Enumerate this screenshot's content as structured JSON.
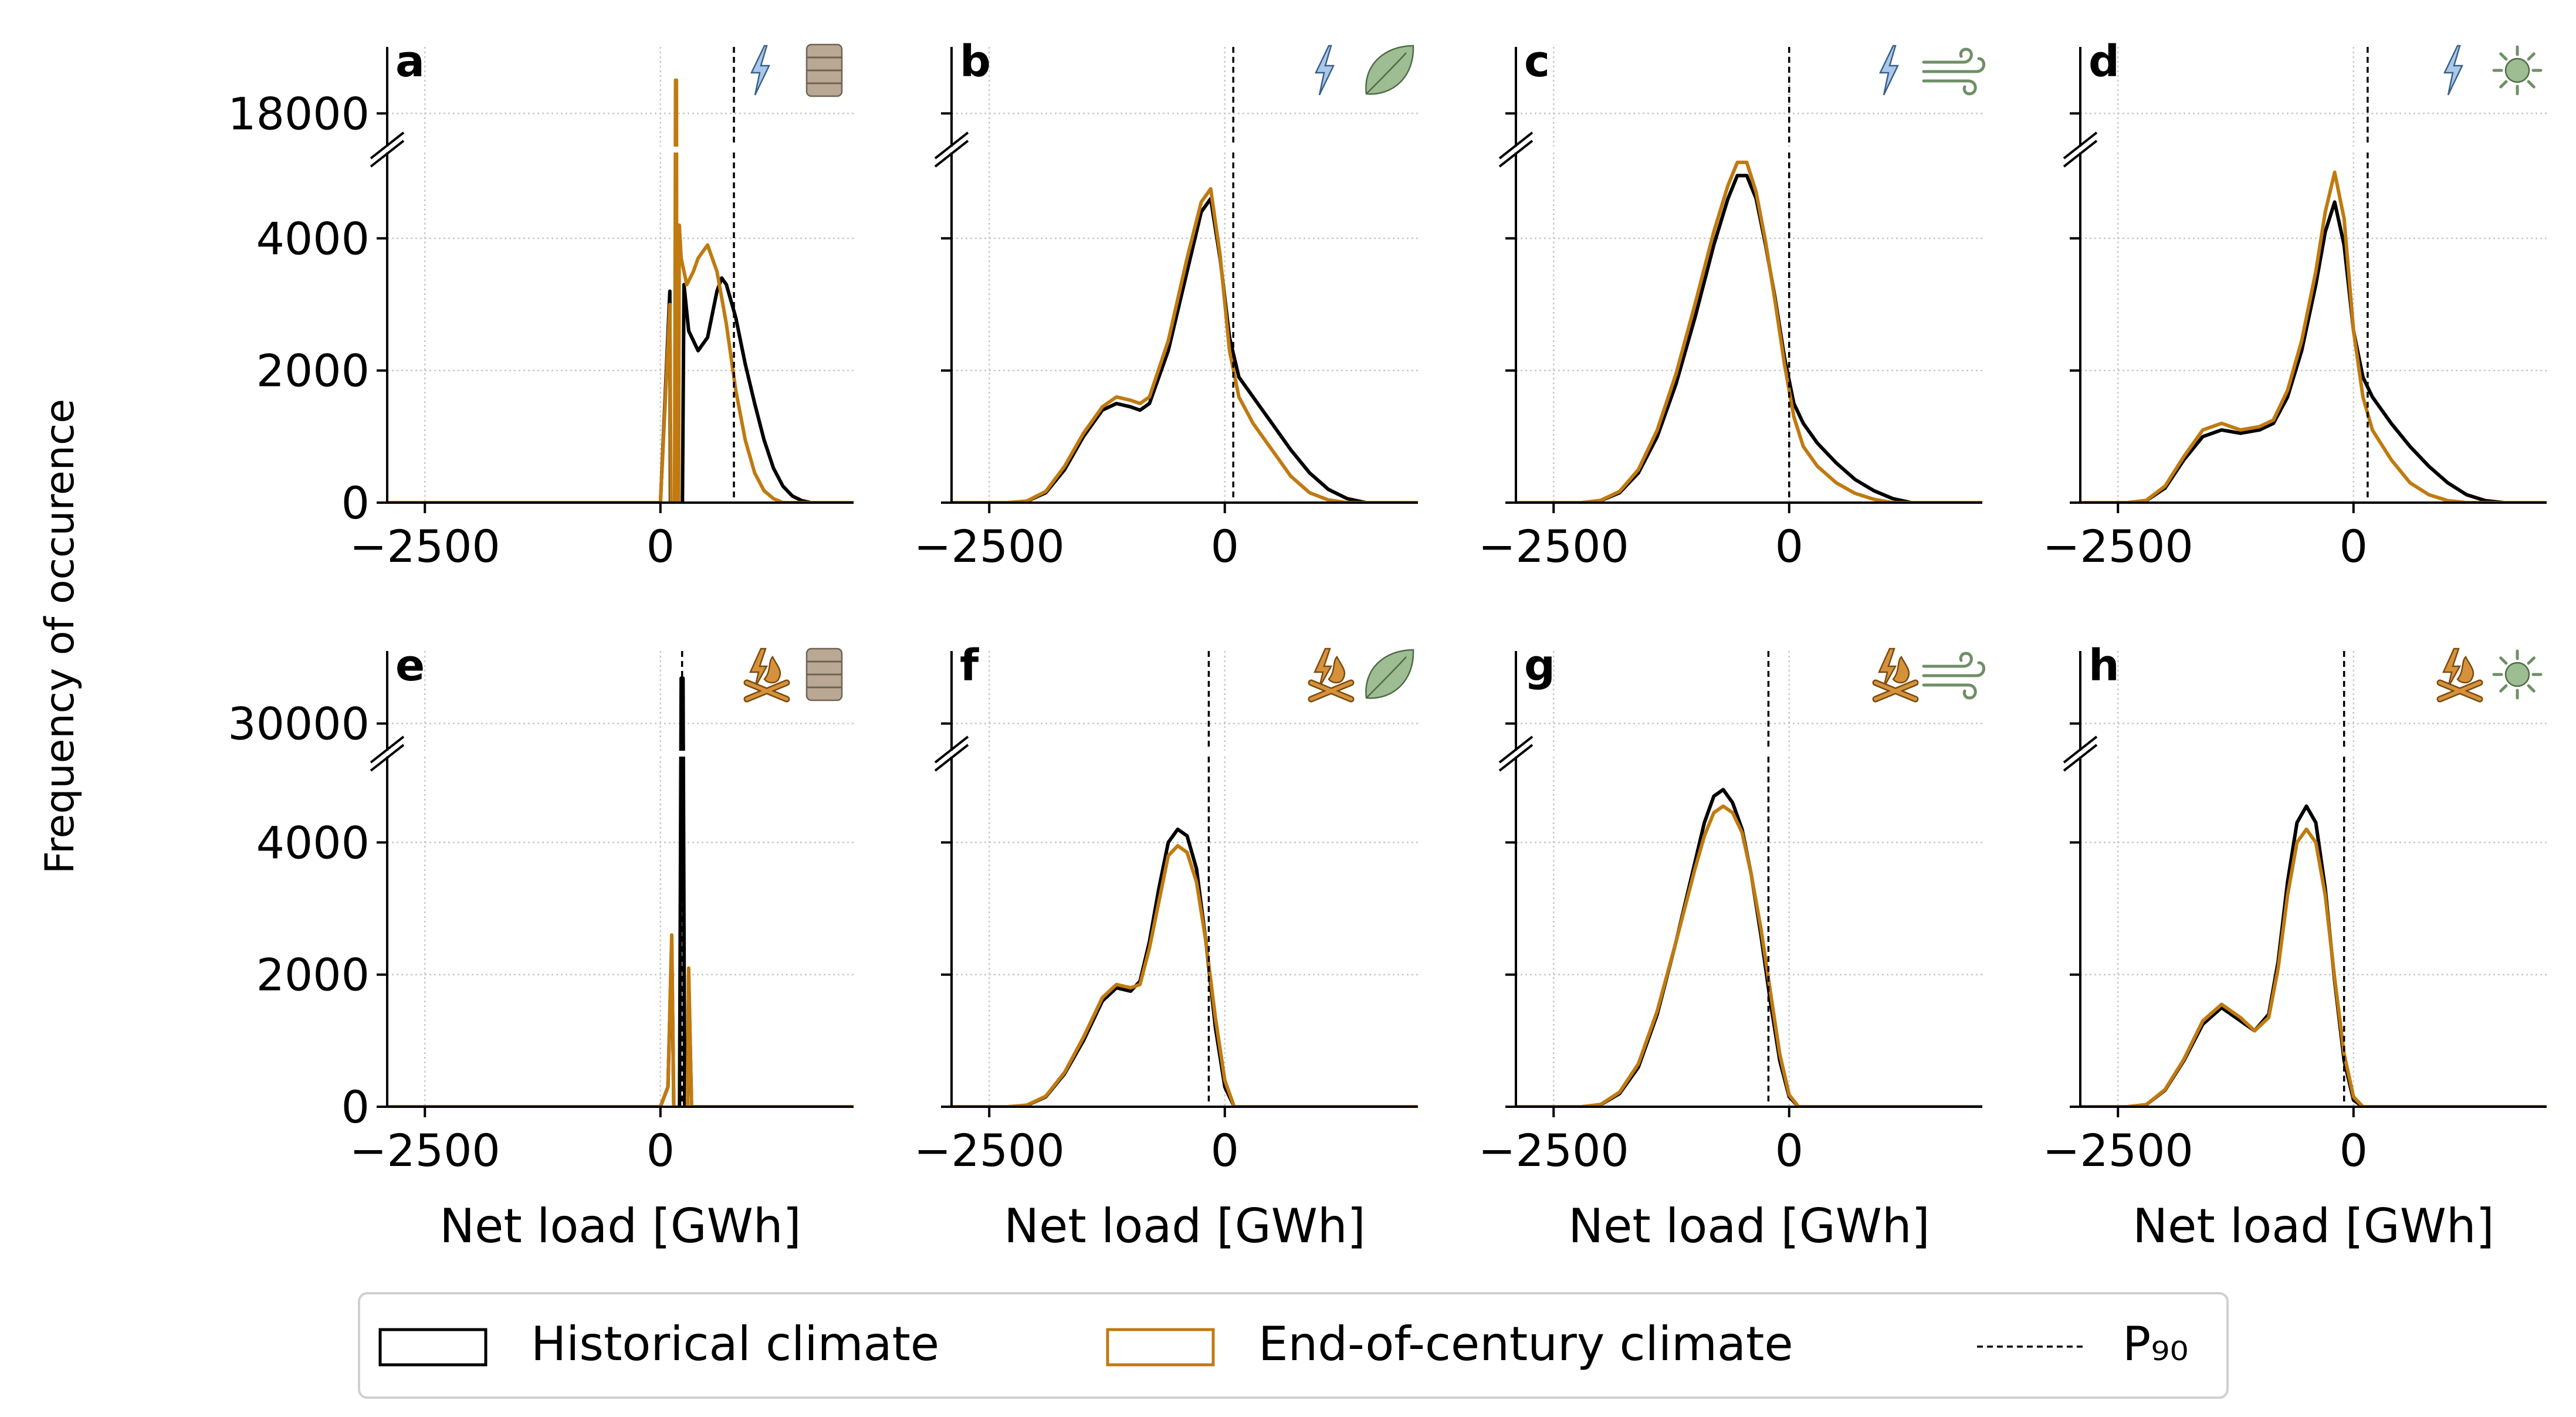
{
  "figure": {
    "ylabel": "Frequency of occurence",
    "xlabel": "Net load [GWh]",
    "legend": {
      "items": [
        {
          "label": "Historical climate",
          "color": "#000000",
          "kind": "box"
        },
        {
          "label": "End-of-century climate",
          "color": "#c07a10",
          "kind": "box"
        },
        {
          "label": "P₉₀",
          "color": "#000000",
          "kind": "dashed-line"
        }
      ]
    },
    "colors": {
      "historical": "#000000",
      "end_of_century": "#c07a10",
      "grid": "#c8c8c8",
      "icon_blue": "#a9c8ea",
      "icon_orange": "#d6923a",
      "icon_green": "#9ebd93",
      "icon_tan": "#b9a994"
    }
  },
  "chart_data": [
    {
      "panel": "a",
      "type": "area",
      "icons": [
        "lightning-icon",
        "oil-barrel-icon"
      ],
      "x_ticks": [
        -2500,
        0
      ],
      "xlim": [
        -2900,
        2050
      ],
      "y_ticks_lower": [
        0,
        2000,
        4000
      ],
      "y_tick_upper": 18000,
      "ylim_lower": [
        0,
        5300
      ],
      "ylim_upper": [
        17500,
        19000
      ],
      "p90": 780,
      "grid": true,
      "series": [
        {
          "name": "Historical climate",
          "x": [
            -2900,
            0,
            100,
            120,
            150,
            200,
            250,
            300,
            400,
            500,
            600,
            650,
            700,
            800,
            900,
            1000,
            1100,
            1200,
            1300,
            1400,
            1500,
            1600,
            2050
          ],
          "y": [
            0,
            0,
            3200,
            5400,
            5400,
            5400,
            3300,
            2600,
            2300,
            2500,
            3200,
            3400,
            3300,
            2800,
            2100,
            1500,
            950,
            520,
            250,
            100,
            30,
            0,
            0
          ]
        },
        {
          "name": "End-of-century climate",
          "x": [
            -2900,
            0,
            100,
            140,
            160,
            170,
            180,
            200,
            220,
            280,
            350,
            400,
            450,
            500,
            550,
            600,
            650,
            700,
            750,
            800,
            900,
            1000,
            1100,
            1200,
            1300,
            2050
          ],
          "y": [
            0,
            0,
            3000,
            5400,
            18500,
            18500,
            5400,
            4200,
            3700,
            3300,
            3500,
            3700,
            3800,
            3900,
            3700,
            3500,
            3100,
            2700,
            2200,
            1700,
            950,
            450,
            180,
            60,
            0,
            0
          ]
        }
      ]
    },
    {
      "panel": "b",
      "type": "area",
      "icons": [
        "lightning-icon",
        "leaf-icon"
      ],
      "x_ticks": [
        -2500,
        0
      ],
      "xlim": [
        -2900,
        2050
      ],
      "y_ticks_lower": [
        0,
        2000,
        4000
      ],
      "y_tick_upper": 18000,
      "ylim_lower": [
        0,
        5300
      ],
      "ylim_upper": [
        17500,
        19000
      ],
      "p90": 90,
      "grid": true,
      "series": [
        {
          "name": "Historical climate",
          "x": [
            -2900,
            -2300,
            -2100,
            -1900,
            -1700,
            -1500,
            -1300,
            -1150,
            -1000,
            -900,
            -800,
            -600,
            -400,
            -250,
            -150,
            -50,
            50,
            150,
            300,
            500,
            700,
            900,
            1100,
            1300,
            1500,
            2050
          ],
          "y": [
            0,
            0,
            20,
            150,
            500,
            1000,
            1400,
            1500,
            1450,
            1400,
            1500,
            2300,
            3500,
            4400,
            4600,
            3700,
            2500,
            1900,
            1600,
            1200,
            800,
            450,
            200,
            60,
            0,
            0
          ]
        },
        {
          "name": "End-of-century climate",
          "x": [
            -2900,
            -2300,
            -2100,
            -1900,
            -1700,
            -1500,
            -1300,
            -1150,
            -1000,
            -900,
            -800,
            -600,
            -400,
            -250,
            -150,
            -50,
            50,
            150,
            300,
            500,
            700,
            900,
            1100,
            1300,
            2050
          ],
          "y": [
            0,
            0,
            25,
            170,
            550,
            1050,
            1450,
            1600,
            1550,
            1500,
            1600,
            2450,
            3700,
            4550,
            4750,
            3750,
            2300,
            1600,
            1200,
            800,
            400,
            150,
            40,
            0,
            0
          ]
        }
      ]
    },
    {
      "panel": "c",
      "type": "area",
      "icons": [
        "lightning-icon",
        "wind-icon"
      ],
      "x_ticks": [
        -2500,
        0
      ],
      "xlim": [
        -2900,
        2050
      ],
      "y_ticks_lower": [
        0,
        2000,
        4000
      ],
      "y_tick_upper": 18000,
      "ylim_lower": [
        0,
        5300
      ],
      "ylim_upper": [
        17500,
        19000
      ],
      "p90": 0,
      "grid": true,
      "series": [
        {
          "name": "Historical climate",
          "x": [
            -2900,
            -2200,
            -2000,
            -1800,
            -1600,
            -1400,
            -1200,
            -1000,
            -800,
            -650,
            -550,
            -450,
            -350,
            -250,
            -150,
            -50,
            50,
            150,
            300,
            500,
            700,
            900,
            1100,
            1300,
            2050
          ],
          "y": [
            0,
            0,
            30,
            150,
            450,
            1000,
            1800,
            2800,
            3900,
            4600,
            4950,
            4950,
            4600,
            3900,
            3100,
            2200,
            1500,
            1200,
            900,
            600,
            350,
            180,
            60,
            0,
            0
          ]
        },
        {
          "name": "End-of-century climate",
          "x": [
            -2900,
            -2200,
            -2000,
            -1800,
            -1600,
            -1400,
            -1200,
            -1000,
            -800,
            -650,
            -550,
            -450,
            -350,
            -250,
            -150,
            -50,
            50,
            150,
            300,
            500,
            700,
            900,
            1100,
            2050
          ],
          "y": [
            0,
            0,
            35,
            170,
            500,
            1100,
            1950,
            3000,
            4100,
            4800,
            5150,
            5150,
            4700,
            3950,
            3050,
            2100,
            1300,
            850,
            550,
            300,
            140,
            50,
            0,
            0
          ]
        }
      ]
    },
    {
      "panel": "d",
      "type": "area",
      "icons": [
        "lightning-icon",
        "sun-icon"
      ],
      "x_ticks": [
        -2500,
        0
      ],
      "xlim": [
        -2900,
        2050
      ],
      "y_ticks_lower": [
        0,
        2000,
        4000
      ],
      "y_tick_upper": 18000,
      "ylim_lower": [
        0,
        5300
      ],
      "ylim_upper": [
        17500,
        19000
      ],
      "p90": 150,
      "grid": true,
      "series": [
        {
          "name": "Historical climate",
          "x": [
            -2900,
            -2400,
            -2200,
            -2000,
            -1800,
            -1600,
            -1400,
            -1200,
            -1000,
            -850,
            -700,
            -550,
            -400,
            -300,
            -200,
            -100,
            0,
            100,
            200,
            400,
            600,
            800,
            1000,
            1200,
            1400,
            1600,
            2050
          ],
          "y": [
            0,
            0,
            30,
            220,
            650,
            1000,
            1100,
            1050,
            1100,
            1200,
            1600,
            2300,
            3300,
            4100,
            4550,
            3900,
            2600,
            1900,
            1600,
            1200,
            850,
            550,
            300,
            120,
            30,
            0,
            0
          ]
        },
        {
          "name": "End-of-century climate",
          "x": [
            -2900,
            -2400,
            -2200,
            -2000,
            -1800,
            -1600,
            -1400,
            -1200,
            -1000,
            -850,
            -700,
            -550,
            -400,
            -300,
            -200,
            -100,
            0,
            100,
            200,
            400,
            600,
            800,
            1000,
            1200,
            2050
          ],
          "y": [
            0,
            0,
            35,
            250,
            700,
            1100,
            1200,
            1100,
            1150,
            1250,
            1700,
            2450,
            3500,
            4400,
            5000,
            4300,
            2600,
            1600,
            1100,
            650,
            300,
            120,
            30,
            0,
            0
          ]
        }
      ]
    },
    {
      "panel": "e",
      "type": "area",
      "icons": [
        "fire-icon",
        "oil-barrel-icon"
      ],
      "x_ticks": [
        -2500,
        0
      ],
      "xlim": [
        -2900,
        2050
      ],
      "y_ticks_lower": [
        0,
        2000,
        4000
      ],
      "y_tick_upper": 30000,
      "ylim_lower": [
        0,
        5300
      ],
      "ylim_upper": [
        28500,
        34000
      ],
      "p90": 230,
      "grid": true,
      "series": [
        {
          "name": "Historical climate",
          "x": [
            -2900,
            0,
            80,
            120,
            150,
            180,
            200,
            220,
            240,
            260,
            280,
            300,
            330,
            2050
          ],
          "y": [
            0,
            0,
            300,
            2500,
            5400,
            5400,
            5400,
            32500,
            32500,
            5400,
            5400,
            2000,
            0,
            0
          ]
        },
        {
          "name": "End-of-century climate",
          "x": [
            -2900,
            0,
            80,
            120,
            150,
            180,
            200,
            220,
            240,
            260,
            280,
            300,
            330,
            2050
          ],
          "y": [
            0,
            0,
            300,
            2600,
            5400,
            5400,
            5400,
            5400,
            5400,
            5400,
            5400,
            2100,
            0,
            0
          ]
        }
      ]
    },
    {
      "panel": "f",
      "type": "area",
      "icons": [
        "fire-icon",
        "leaf-icon"
      ],
      "x_ticks": [
        -2500,
        0
      ],
      "xlim": [
        -2900,
        2050
      ],
      "y_ticks_lower": [
        0,
        2000,
        4000
      ],
      "y_tick_upper": 30000,
      "ylim_lower": [
        0,
        5300
      ],
      "ylim_upper": [
        28500,
        34000
      ],
      "p90": -170,
      "grid": true,
      "series": [
        {
          "name": "Historical climate",
          "x": [
            -2900,
            -2300,
            -2100,
            -1900,
            -1700,
            -1500,
            -1300,
            -1150,
            -1000,
            -900,
            -800,
            -700,
            -600,
            -500,
            -400,
            -300,
            -200,
            -100,
            0,
            100,
            2050
          ],
          "y": [
            0,
            0,
            20,
            150,
            500,
            1000,
            1600,
            1800,
            1750,
            1900,
            2500,
            3300,
            4000,
            4200,
            4100,
            3600,
            2500,
            1200,
            300,
            0,
            0
          ]
        },
        {
          "name": "End-of-century climate",
          "x": [
            -2900,
            -2300,
            -2100,
            -1900,
            -1700,
            -1500,
            -1300,
            -1150,
            -1000,
            -900,
            -800,
            -700,
            -600,
            -500,
            -400,
            -300,
            -200,
            -100,
            0,
            100,
            2050
          ],
          "y": [
            0,
            0,
            25,
            160,
            520,
            1050,
            1650,
            1850,
            1800,
            1850,
            2400,
            3100,
            3800,
            3950,
            3850,
            3400,
            2500,
            1350,
            400,
            0,
            0
          ]
        }
      ]
    },
    {
      "panel": "g",
      "type": "area",
      "icons": [
        "fire-icon",
        "wind-icon"
      ],
      "x_ticks": [
        -2500,
        0
      ],
      "xlim": [
        -2900,
        2050
      ],
      "y_ticks_lower": [
        0,
        2000,
        4000
      ],
      "y_tick_upper": 30000,
      "ylim_lower": [
        0,
        5300
      ],
      "ylim_upper": [
        28500,
        34000
      ],
      "p90": -220,
      "grid": true,
      "series": [
        {
          "name": "Historical climate",
          "x": [
            -2900,
            -2200,
            -2000,
            -1800,
            -1600,
            -1400,
            -1200,
            -1000,
            -900,
            -800,
            -700,
            -600,
            -500,
            -400,
            -300,
            -200,
            -100,
            0,
            100,
            2050
          ],
          "y": [
            0,
            0,
            30,
            200,
            600,
            1400,
            2500,
            3700,
            4300,
            4700,
            4800,
            4600,
            4200,
            3500,
            2600,
            1600,
            700,
            150,
            0,
            0
          ]
        },
        {
          "name": "End-of-century climate",
          "x": [
            -2900,
            -2200,
            -2000,
            -1800,
            -1600,
            -1400,
            -1200,
            -1000,
            -900,
            -800,
            -700,
            -600,
            -500,
            -400,
            -300,
            -200,
            -100,
            0,
            100,
            2050
          ],
          "y": [
            0,
            0,
            35,
            220,
            650,
            1450,
            2500,
            3600,
            4100,
            4450,
            4550,
            4450,
            4150,
            3500,
            2700,
            1750,
            800,
            180,
            0,
            0
          ]
        }
      ]
    },
    {
      "panel": "h",
      "type": "area",
      "icons": [
        "fire-icon",
        "sun-icon"
      ],
      "x_ticks": [
        -2500,
        0
      ],
      "xlim": [
        -2900,
        2050
      ],
      "y_ticks_lower": [
        0,
        2000,
        4000
      ],
      "y_tick_upper": 30000,
      "ylim_lower": [
        0,
        5300
      ],
      "ylim_upper": [
        28500,
        34000
      ],
      "p90": -100,
      "grid": true,
      "series": [
        {
          "name": "Historical climate",
          "x": [
            -2900,
            -2400,
            -2200,
            -2000,
            -1800,
            -1600,
            -1400,
            -1200,
            -1050,
            -900,
            -800,
            -700,
            -600,
            -500,
            -400,
            -300,
            -200,
            -100,
            0,
            100,
            2050
          ],
          "y": [
            0,
            0,
            30,
            250,
            700,
            1250,
            1500,
            1300,
            1150,
            1400,
            2200,
            3400,
            4300,
            4550,
            4300,
            3300,
            1900,
            700,
            100,
            0,
            0
          ]
        },
        {
          "name": "End-of-century climate",
          "x": [
            -2900,
            -2400,
            -2200,
            -2000,
            -1800,
            -1600,
            -1400,
            -1200,
            -1050,
            -900,
            -800,
            -700,
            -600,
            -500,
            -400,
            -300,
            -200,
            -100,
            0,
            100,
            2050
          ],
          "y": [
            0,
            0,
            30,
            260,
            720,
            1300,
            1550,
            1350,
            1150,
            1350,
            2100,
            3200,
            4000,
            4200,
            4000,
            3200,
            1950,
            800,
            150,
            0,
            0
          ]
        }
      ]
    }
  ]
}
